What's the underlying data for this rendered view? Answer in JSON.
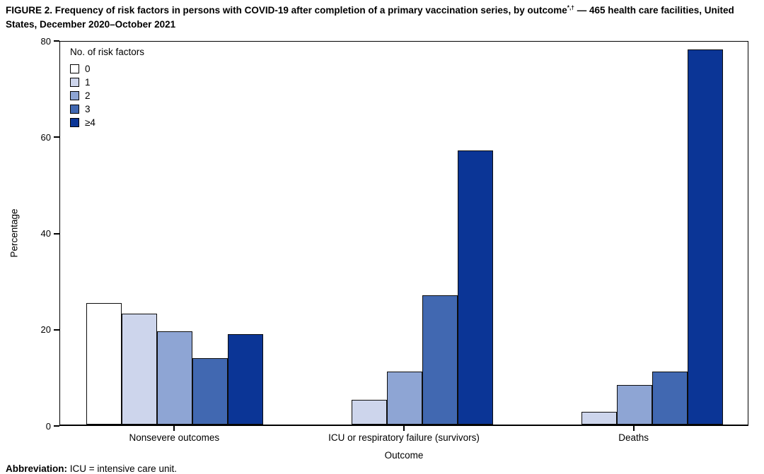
{
  "title": {
    "before": "FIGURE 2. Frequency of risk factors in persons with COVID-19 after completion of a primary vaccination series, by outcome",
    "sup": "*,†",
    "after": " — 465 health care facilities, United States, December 2020–October 2021"
  },
  "footnote": {
    "label": "Abbreviation:",
    "rest": " ICU = intensive care unit."
  },
  "chart_data": {
    "type": "bar",
    "title": "FIGURE 2. Frequency of risk factors in persons with COVID-19 after completion of a primary vaccination series, by outcome*,† — 465 health care facilities, United States, December 2020–October 2021",
    "categories": [
      "Nonsevere outcomes",
      "ICU or respiratory failure (survivors)",
      "Deaths"
    ],
    "legend_title": "No. of risk factors",
    "legend_position": "top-left-inside",
    "series": [
      {
        "name": "0",
        "color": "#ffffff",
        "values": [
          25.2,
          0,
          0
        ]
      },
      {
        "name": "1",
        "color": "#cdd5ec",
        "values": [
          23.0,
          5.2,
          2.7
        ]
      },
      {
        "name": "2",
        "color": "#8ea5d4",
        "values": [
          19.4,
          11.0,
          8.2
        ]
      },
      {
        "name": "3",
        "color": "#4168b1",
        "values": [
          13.8,
          26.8,
          11.0
        ]
      },
      {
        "name": "≥4",
        "color": "#0b3596",
        "values": [
          18.8,
          57.0,
          78.0
        ]
      }
    ],
    "xlabel": "Outcome",
    "ylabel": "Percentage",
    "ylim": [
      0,
      80
    ],
    "yticks": [
      0,
      20,
      40,
      60,
      80
    ],
    "grid": false,
    "bar_outline_color": "#000000"
  }
}
